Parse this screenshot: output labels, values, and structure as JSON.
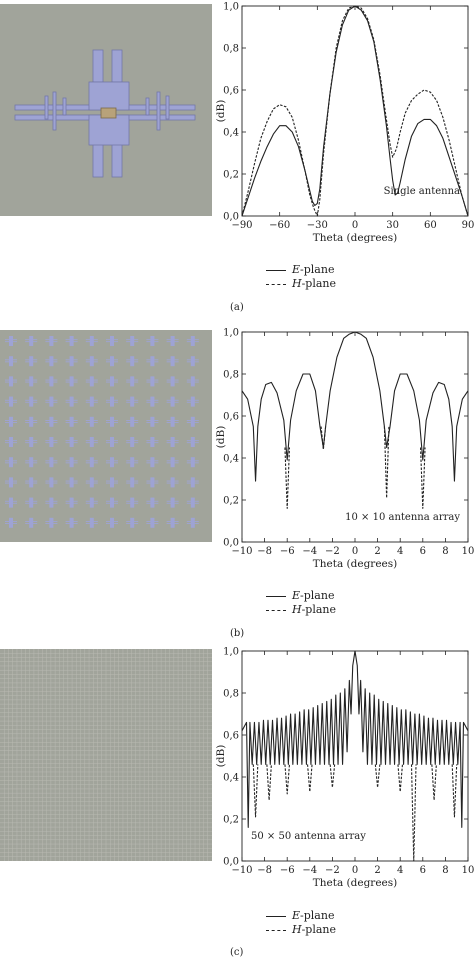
{
  "legend": {
    "e_letter": "E",
    "e_rest": "-plane",
    "h_letter": "H",
    "h_rest": "-plane"
  },
  "colors": {
    "substrate": "#a1a49b",
    "metal": "#9ea3d4",
    "metal_edge": "#7377a8",
    "grid_line": "#b9bab3",
    "curve": "#222222"
  },
  "chart_data": [
    {
      "type": "line",
      "caption": "(a)",
      "xlabel": "Theta (degrees)",
      "ylabel": "(dB)",
      "annotation": "Single antenna",
      "xlim": [
        -90,
        90
      ],
      "ylim": [
        0,
        1
      ],
      "xticks": [
        -90,
        -60,
        -30,
        0,
        30,
        60,
        90
      ],
      "xtick_labels": [
        "−90",
        "−60",
        "−30",
        "0",
        "30",
        "60",
        "90"
      ],
      "yticks": [
        0,
        0.2,
        0.4,
        0.6,
        0.8,
        1.0
      ],
      "ytick_labels": [
        "0,0",
        "0,2",
        "0,4",
        "0,6",
        "0,8",
        "1,0"
      ],
      "grid": false,
      "legend_position": "below",
      "series": [
        {
          "name": "E-plane",
          "style": "solid",
          "x": [
            -90,
            -85,
            -80,
            -75,
            -70,
            -65,
            -60,
            -55,
            -50,
            -45,
            -40,
            -36,
            -34,
            -32,
            -30,
            -28,
            -25,
            -20,
            -15,
            -10,
            -5,
            0,
            5,
            10,
            15,
            20,
            25,
            28,
            30,
            32,
            34,
            36,
            40,
            45,
            50,
            55,
            60,
            65,
            70,
            75,
            80,
            85,
            90
          ],
          "y": [
            0.0,
            0.09,
            0.18,
            0.26,
            0.33,
            0.39,
            0.43,
            0.43,
            0.4,
            0.33,
            0.22,
            0.12,
            0.07,
            0.05,
            0.06,
            0.13,
            0.33,
            0.58,
            0.78,
            0.91,
            0.98,
            1.0,
            0.98,
            0.93,
            0.83,
            0.65,
            0.43,
            0.27,
            0.17,
            0.1,
            0.11,
            0.16,
            0.27,
            0.38,
            0.44,
            0.46,
            0.46,
            0.43,
            0.37,
            0.28,
            0.19,
            0.1,
            0.0
          ]
        },
        {
          "name": "H-plane",
          "style": "dashed",
          "x": [
            -90,
            -85,
            -80,
            -75,
            -70,
            -65,
            -60,
            -55,
            -50,
            -45,
            -40,
            -36,
            -33,
            -30,
            -28,
            -25,
            -20,
            -15,
            -10,
            -5,
            0,
            5,
            10,
            15,
            20,
            25,
            28,
            30,
            33,
            36,
            40,
            45,
            50,
            55,
            60,
            65,
            70,
            75,
            80,
            85,
            90
          ],
          "y": [
            0.0,
            0.12,
            0.25,
            0.37,
            0.45,
            0.51,
            0.53,
            0.52,
            0.47,
            0.36,
            0.22,
            0.1,
            0.04,
            0.0,
            0.08,
            0.3,
            0.58,
            0.8,
            0.93,
            0.99,
            1.0,
            0.99,
            0.94,
            0.84,
            0.67,
            0.46,
            0.34,
            0.28,
            0.32,
            0.4,
            0.49,
            0.55,
            0.58,
            0.6,
            0.59,
            0.55,
            0.47,
            0.36,
            0.23,
            0.1,
            0.0
          ]
        }
      ]
    },
    {
      "type": "line",
      "caption": "(b)",
      "xlabel": "Theta (degrees)",
      "ylabel": "(dB)",
      "annotation": "10 × 10 antenna array",
      "xlim": [
        -10,
        10
      ],
      "ylim": [
        0,
        1
      ],
      "xticks": [
        -10,
        -8,
        -6,
        -4,
        -2,
        0,
        2,
        4,
        6,
        8,
        10
      ],
      "xtick_labels": [
        "−10",
        "−8",
        "−6",
        "−4",
        "−2",
        "0",
        "2",
        "4",
        "6",
        "8",
        "10"
      ],
      "yticks": [
        0,
        0.2,
        0.4,
        0.6,
        0.8,
        1.0
      ],
      "ytick_labels": [
        "0,0",
        "0,2",
        "0,4",
        "0,6",
        "0,8",
        "1,0"
      ],
      "grid": false,
      "legend_position": "below",
      "series": [
        {
          "name": "E-plane",
          "style": "solid",
          "x": [
            -10,
            -9.5,
            -9.0,
            -8.8,
            -8.6,
            -8.3,
            -7.9,
            -7.4,
            -6.9,
            -6.3,
            -6.0,
            -5.7,
            -5.2,
            -4.6,
            -4.0,
            -3.5,
            -3.1,
            -2.8,
            -2.6,
            -2.2,
            -1.6,
            -1.0,
            -0.5,
            0,
            0.5,
            1.0,
            1.6,
            2.2,
            2.6,
            2.8,
            3.1,
            3.5,
            4.0,
            4.6,
            5.2,
            5.7,
            6.0,
            6.3,
            6.9,
            7.4,
            7.9,
            8.3,
            8.6,
            8.8,
            9.0,
            9.5,
            10
          ],
          "y": [
            0.72,
            0.68,
            0.55,
            0.29,
            0.55,
            0.68,
            0.75,
            0.76,
            0.71,
            0.58,
            0.39,
            0.58,
            0.72,
            0.8,
            0.8,
            0.72,
            0.55,
            0.45,
            0.55,
            0.72,
            0.88,
            0.97,
            0.99,
            1.0,
            0.99,
            0.97,
            0.88,
            0.72,
            0.55,
            0.45,
            0.55,
            0.72,
            0.8,
            0.8,
            0.72,
            0.58,
            0.39,
            0.58,
            0.71,
            0.76,
            0.75,
            0.68,
            0.55,
            0.29,
            0.55,
            0.68,
            0.72
          ]
        },
        {
          "name": "H-plane",
          "style": "dashed",
          "x": [
            -6.2,
            -6.0,
            -5.8,
            -3.0,
            -2.8,
            -2.6,
            2.6,
            2.8,
            3.0,
            5.8,
            6.0,
            6.2
          ],
          "y": [
            0.45,
            0.16,
            0.45,
            0.55,
            0.44,
            0.55,
            0.55,
            0.21,
            0.55,
            0.45,
            0.16,
            0.45
          ]
        }
      ]
    },
    {
      "type": "line",
      "caption": "(c)",
      "xlabel": "Theta (degrees)",
      "ylabel": "(dB)",
      "annotation": "50 × 50 antenna array",
      "xlim": [
        -10,
        10
      ],
      "ylim": [
        0,
        1
      ],
      "xticks": [
        -10,
        -8,
        -6,
        -4,
        -2,
        0,
        2,
        4,
        6,
        8,
        10
      ],
      "xtick_labels": [
        "−10",
        "−8",
        "−6",
        "−4",
        "−2",
        "0",
        "2",
        "4",
        "6",
        "8",
        "10"
      ],
      "yticks": [
        0,
        0.2,
        0.4,
        0.6,
        0.8,
        1.0
      ],
      "ytick_labels": [
        "0,0",
        "0,2",
        "0,4",
        "0,6",
        "0,8",
        "1,0"
      ],
      "grid": false,
      "legend_position": "below",
      "series": [
        {
          "name": "E-plane",
          "style": "solid",
          "x": [
            -10,
            -9.6,
            -9.45,
            -9.3,
            -9.1,
            -8.9,
            -8.7,
            -8.5,
            -8.3,
            -8.1,
            -7.9,
            -7.7,
            -7.5,
            -7.3,
            -7.1,
            -6.9,
            -6.7,
            -6.5,
            -6.3,
            -6.1,
            -5.9,
            -5.7,
            -5.5,
            -5.3,
            -5.1,
            -4.9,
            -4.7,
            -4.5,
            -4.3,
            -4.1,
            -3.9,
            -3.7,
            -3.5,
            -3.3,
            -3.1,
            -2.9,
            -2.7,
            -2.5,
            -2.3,
            -2.1,
            -1.9,
            -1.7,
            -1.5,
            -1.3,
            -1.1,
            -0.9,
            -0.7,
            -0.5,
            -0.35,
            -0.2,
            0,
            0.2,
            0.35,
            0.5,
            0.7,
            0.9,
            1.1,
            1.3,
            1.5,
            1.7,
            1.9,
            2.1,
            2.3,
            2.5,
            2.7,
            2.9,
            3.1,
            3.3,
            3.5,
            3.7,
            3.9,
            4.1,
            4.3,
            4.5,
            4.7,
            4.9,
            5.1,
            5.3,
            5.5,
            5.7,
            5.9,
            6.1,
            6.3,
            6.5,
            6.7,
            6.9,
            7.1,
            7.3,
            7.5,
            7.7,
            7.9,
            8.1,
            8.3,
            8.5,
            8.7,
            8.9,
            9.1,
            9.3,
            9.45,
            9.6,
            10
          ],
          "y": [
            0.62,
            0.66,
            0.16,
            0.66,
            0.46,
            0.66,
            0.46,
            0.66,
            0.46,
            0.67,
            0.46,
            0.67,
            0.46,
            0.67,
            0.46,
            0.68,
            0.46,
            0.68,
            0.46,
            0.69,
            0.46,
            0.7,
            0.46,
            0.7,
            0.46,
            0.71,
            0.46,
            0.72,
            0.46,
            0.72,
            0.46,
            0.73,
            0.46,
            0.74,
            0.46,
            0.75,
            0.46,
            0.76,
            0.46,
            0.77,
            0.46,
            0.79,
            0.46,
            0.8,
            0.46,
            0.82,
            0.52,
            0.86,
            0.7,
            0.93,
            1.0,
            0.93,
            0.7,
            0.86,
            0.52,
            0.82,
            0.46,
            0.8,
            0.46,
            0.79,
            0.46,
            0.77,
            0.46,
            0.76,
            0.46,
            0.75,
            0.46,
            0.74,
            0.46,
            0.73,
            0.46,
            0.72,
            0.46,
            0.72,
            0.46,
            0.71,
            0.46,
            0.7,
            0.46,
            0.7,
            0.46,
            0.69,
            0.46,
            0.68,
            0.46,
            0.68,
            0.46,
            0.67,
            0.46,
            0.67,
            0.46,
            0.67,
            0.46,
            0.66,
            0.46,
            0.66,
            0.46,
            0.66,
            0.16,
            0.66,
            0.62
          ]
        },
        {
          "name": "H-plane",
          "style": "dashed",
          "x": [
            -9.0,
            -8.8,
            -8.6,
            -7.8,
            -7.6,
            -7.4,
            -6.2,
            -6.0,
            -5.8,
            -4.2,
            -4.0,
            -3.8,
            -2.2,
            -2.0,
            -1.8,
            1.8,
            2.0,
            2.2,
            3.8,
            4.0,
            4.2,
            5.0,
            5.2,
            5.4,
            6.8,
            7.0,
            7.2,
            8.6,
            8.8,
            9.0
          ],
          "y": [
            0.46,
            0.21,
            0.46,
            0.46,
            0.29,
            0.46,
            0.46,
            0.32,
            0.46,
            0.46,
            0.33,
            0.46,
            0.46,
            0.35,
            0.46,
            0.46,
            0.35,
            0.46,
            0.46,
            0.33,
            0.46,
            0.46,
            0.0,
            0.46,
            0.46,
            0.29,
            0.46,
            0.46,
            0.21,
            0.46
          ]
        }
      ]
    }
  ]
}
